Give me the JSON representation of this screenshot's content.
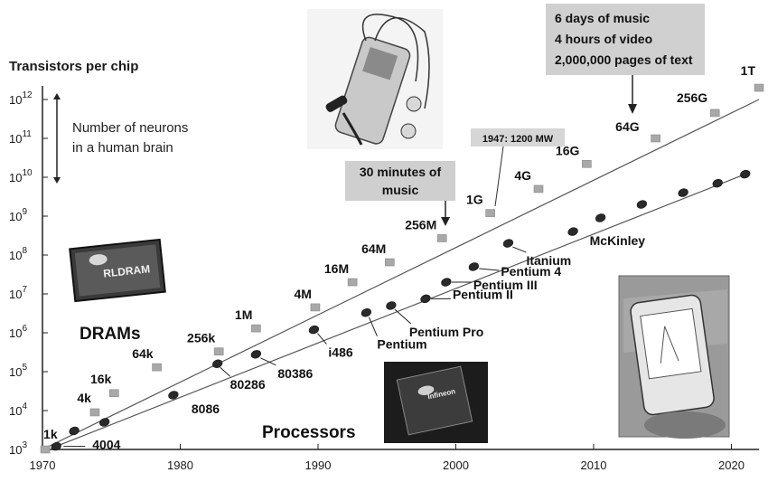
{
  "chart_data": {
    "type": "scatter",
    "yscale": "log",
    "title": "Transistors per chip",
    "xlim": [
      1970,
      2022
    ],
    "ylim_exp": [
      3,
      12.3
    ],
    "x_ticks": [
      "1970",
      "1980",
      "1990",
      "2000",
      "2010",
      "2020"
    ],
    "y_tick_base": "10",
    "y_tick_exps": [
      "3",
      "4",
      "5",
      "6",
      "7",
      "8",
      "9",
      "10",
      "11",
      "12"
    ],
    "series": [
      {
        "name": "DRAMs",
        "color": "#a8a8a8",
        "marker": "square",
        "points": [
          {
            "x": 1970.2,
            "y": 1000,
            "label": "1k"
          },
          {
            "x": 1973.8,
            "y": 9000,
            "label": "4k"
          },
          {
            "x": 1975.2,
            "y": 28000,
            "label": "16k"
          },
          {
            "x": 1978.3,
            "y": 130000,
            "label": "64k"
          },
          {
            "x": 1982.8,
            "y": 330000,
            "label": "256k"
          },
          {
            "x": 1985.5,
            "y": 1300000,
            "label": "1M"
          },
          {
            "x": 1989.8,
            "y": 4500000,
            "label": "4M"
          },
          {
            "x": 1992.5,
            "y": 20000000,
            "label": "16M"
          },
          {
            "x": 1995.2,
            "y": 65000000,
            "label": "64M"
          },
          {
            "x": 1999.0,
            "y": 270000000,
            "label": "256M"
          },
          {
            "x": 2002.5,
            "y": 1200000000,
            "label": "1G"
          },
          {
            "x": 2006.0,
            "y": 5000000000,
            "label": "4G"
          },
          {
            "x": 2009.5,
            "y": 22000000000,
            "label": "16G"
          },
          {
            "x": 2014.5,
            "y": 100000000000,
            "label": "64G"
          },
          {
            "x": 2018.8,
            "y": 450000000000,
            "label": "256G"
          },
          {
            "x": 2022.0,
            "y": 2000000000000,
            "label": "1T"
          }
        ]
      },
      {
        "name": "Processors",
        "color": "#2a2a2a",
        "marker": "ellipse",
        "points": [
          {
            "x": 1971.0,
            "y": 1200,
            "label": "4004"
          },
          {
            "x": 1972.3,
            "y": 3000,
            "label": ""
          },
          {
            "x": 1974.5,
            "y": 5000,
            "label": ""
          },
          {
            "x": 1979.5,
            "y": 25000,
            "label": "8086"
          },
          {
            "x": 1982.7,
            "y": 160000,
            "label": "80286"
          },
          {
            "x": 1985.5,
            "y": 280000,
            "label": "80386"
          },
          {
            "x": 1989.7,
            "y": 1200000,
            "label": "i486"
          },
          {
            "x": 1993.5,
            "y": 3300000,
            "label": "Pentium"
          },
          {
            "x": 1995.3,
            "y": 5000000,
            "label": "Pentium Pro"
          },
          {
            "x": 1997.8,
            "y": 7500000,
            "label": "Pentium II"
          },
          {
            "x": 1999.3,
            "y": 20000000,
            "label": "Pentium III"
          },
          {
            "x": 2001.3,
            "y": 50000000,
            "label": "Pentium 4"
          },
          {
            "x": 2003.8,
            "y": 200000000,
            "label": "Itanium"
          },
          {
            "x": 2008.5,
            "y": 400000000,
            "label": ""
          },
          {
            "x": 2010.5,
            "y": 900000000,
            "label": "McKinley"
          },
          {
            "x": 2013.5,
            "y": 2000000000,
            "label": ""
          },
          {
            "x": 2016.5,
            "y": 4000000000,
            "label": ""
          },
          {
            "x": 2019.0,
            "y": 7000000000,
            "label": ""
          },
          {
            "x": 2021.0,
            "y": 12000000000,
            "label": ""
          }
        ]
      }
    ],
    "trendlines": [
      {
        "series": "DRAMs",
        "from": [
          1970,
          1000
        ],
        "to": [
          2022,
          1000000000000
        ]
      },
      {
        "series": "Processors",
        "from": [
          1971,
          1200
        ],
        "to": [
          2021,
          12000000000
        ]
      }
    ],
    "annotations": {
      "brain": "Number of neurons\nin a human brain",
      "music": "30 minutes of\nmusic",
      "mw": "1947: 1200 MW",
      "big": "6 days of music\n4 hours of video\n2,000,000 pages of text",
      "dram_group": "DRAMs",
      "proc_group": "Processors",
      "rldram": "RLDRAM",
      "chip_brand": "Infineon"
    }
  }
}
